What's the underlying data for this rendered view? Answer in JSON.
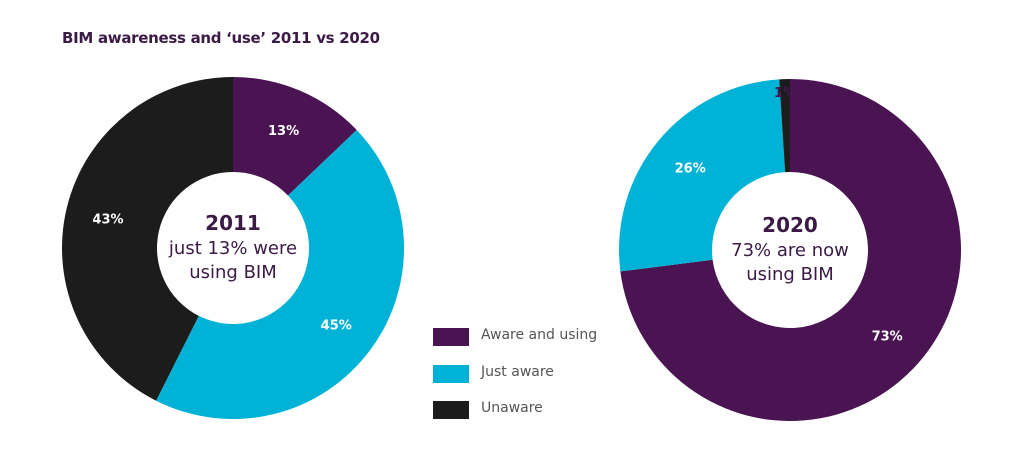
{
  "chart_data": [
    {
      "type": "pie",
      "variant": "donut",
      "title": "BIM awareness and ‘use’ 2011 vs 2020",
      "center_year": "2011",
      "center_text": [
        "just 13% were",
        "using BIM"
      ],
      "categories": [
        "Aware and using",
        "Just aware",
        "Unaware"
      ],
      "values": [
        13,
        45,
        43
      ],
      "data_labels": [
        "13%",
        "45%",
        "43%"
      ]
    },
    {
      "type": "pie",
      "variant": "donut",
      "center_year": "2020",
      "center_text": [
        "73% are now",
        "using BIM"
      ],
      "categories": [
        "Aware and using",
        "Just aware",
        "Unaware"
      ],
      "values": [
        73,
        26,
        1
      ],
      "data_labels": [
        "73%",
        "26%",
        "1%"
      ]
    }
  ],
  "legend": {
    "placement": "center-bottom",
    "items": [
      {
        "label": "Aware and using",
        "color": "#4a1452"
      },
      {
        "label": "Just aware",
        "color": "#00b3d6"
      },
      {
        "label": "Unaware",
        "color": "#1c1c1c"
      }
    ]
  },
  "colors": {
    "title": "#3b1a45",
    "center_text": "#3b1a45",
    "label": "#ffffff"
  }
}
